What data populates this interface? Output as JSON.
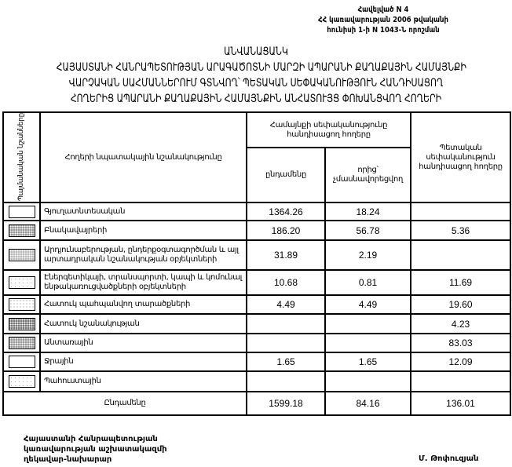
{
  "annex": [
    "Հավելված N 4",
    "ՀՀ կառավարության 2006 թվականի",
    "հունիսի 1-ի N 1043-Ն որոշման"
  ],
  "title": [
    "ԱՆՎԱՆԱՑԱՆԿ",
    "ՀԱՅԱՍՏԱՆԻ ՀԱՆՐԱՊԵՏՈՒԹՅԱՆ ԱՐԱԳԱԾՈՏՆԻ ՄԱՐԶԻ ԱՊԱՐԱՆԻ ՔԱՂԱՔԱՅԻՆ ՀԱՄԱՅՆՔԻ",
    "ՎԱՐՉԱԿԱՆ ՍԱՀՄԱՆՆԵՐՈՒՄ ԳՏՆՎՈՂ՝ ՊԵՏԱԿԱՆ ՍԵՓԱԿԱՆՈՒԹՅՈՒՆ ՀԱՆԴԻՍԱՑՈՂ",
    "ՀՈՂԵՐԻՑ ԱՊԱՐԱՆԻ ՔԱՂԱՔԱՅԻՆ ՀԱՄԱՅՆՔԻՆ ԱՆՀԱՏՈՒՅՑ ՓՈԽԱՆՑՎՈՂ ՀՈՂԵՐԻ"
  ],
  "table": {
    "headers": {
      "symbols": "Պայմանական նշանները",
      "purpose": "Հողերի նպատակային նշանակությունը",
      "community": "Համայնքի սեփականությունը հանդիսացող հողերը",
      "total": "ընդամենը",
      "non_privatized": "որից՝ չմասնավորեցվող",
      "state": "Պետական սեփականություն հանդիսացող հողերը"
    },
    "rows": [
      {
        "pattern": "none",
        "label": "Գյուղատնտեսական",
        "total": "1364.26",
        "non_privatized": "18.24",
        "state": ""
      },
      {
        "pattern": "dense",
        "label": "Բնակավայրերի",
        "total": "186.20",
        "non_privatized": "56.78",
        "state": "5.36"
      },
      {
        "pattern": "mid",
        "label": "Արդյունաբերության, ընդերքօգտագործման և այլ արտադրական նշանակության օբյեկտների",
        "total": "31.89",
        "non_privatized": "2.19",
        "state": ""
      },
      {
        "pattern": "lighter",
        "label": "Էներգետիկայի, տրանսպորտի, կապի և կոմունալ ենթակառուցվածքների օբյեկտների",
        "total": "10.68",
        "non_privatized": "0.81",
        "state": "11.69"
      },
      {
        "pattern": "light",
        "label": "Հատուկ պահպանվող տարածքների",
        "total": "4.49",
        "non_privatized": "4.49",
        "state": "19.60"
      },
      {
        "pattern": "dark",
        "label": "Հատուկ նշանակության",
        "total": "",
        "non_privatized": "",
        "state": "4.23"
      },
      {
        "pattern": "dense",
        "label": "Անտառային",
        "total": "",
        "non_privatized": "",
        "state": "83.03"
      },
      {
        "pattern": "none",
        "label": "Ջրային",
        "total": "1.65",
        "non_privatized": "1.65",
        "state": "12.09"
      },
      {
        "pattern": "lighter",
        "label": "Պահուստային",
        "total": "",
        "non_privatized": "",
        "state": ""
      }
    ],
    "totals": {
      "label": "Ընդամենը",
      "total": "1599.18",
      "non_privatized": "84.16",
      "state": "136.01"
    }
  },
  "footer": {
    "lines": [
      "Հայաստանի Հանրապետության",
      "կառավարության աշխատակազմի",
      "ղեկավար-նախարար"
    ],
    "signatory": "Մ. Թոփուզյան"
  }
}
